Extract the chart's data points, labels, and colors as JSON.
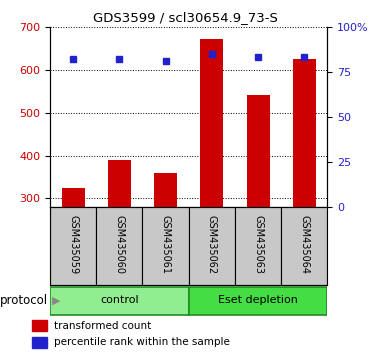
{
  "title": "GDS3599 / scl30654.9_73-S",
  "samples": [
    "GSM435059",
    "GSM435060",
    "GSM435061",
    "GSM435062",
    "GSM435063",
    "GSM435064"
  ],
  "red_values": [
    325,
    390,
    360,
    670,
    540,
    625
  ],
  "blue_values": [
    82,
    82,
    81,
    85,
    83,
    83
  ],
  "ylim_left": [
    280,
    700
  ],
  "ylim_right": [
    0,
    100
  ],
  "yticks_left": [
    300,
    400,
    500,
    600,
    700
  ],
  "yticks_right": [
    0,
    25,
    50,
    75,
    100
  ],
  "ytick_labels_right": [
    "0",
    "25",
    "50",
    "75",
    "100%"
  ],
  "bar_color": "#cc0000",
  "dot_color": "#2222cc",
  "groups": [
    {
      "label": "control",
      "indices": [
        0,
        1,
        2
      ],
      "color": "#90ee90"
    },
    {
      "label": "Eset depletion",
      "indices": [
        3,
        4,
        5
      ],
      "color": "#44dd44"
    }
  ],
  "protocol_label": "protocol",
  "legend_bar_label": "transformed count",
  "legend_dot_label": "percentile rank within the sample",
  "label_area_color": "#c8c8c8",
  "group_edge_color": "#228B22"
}
